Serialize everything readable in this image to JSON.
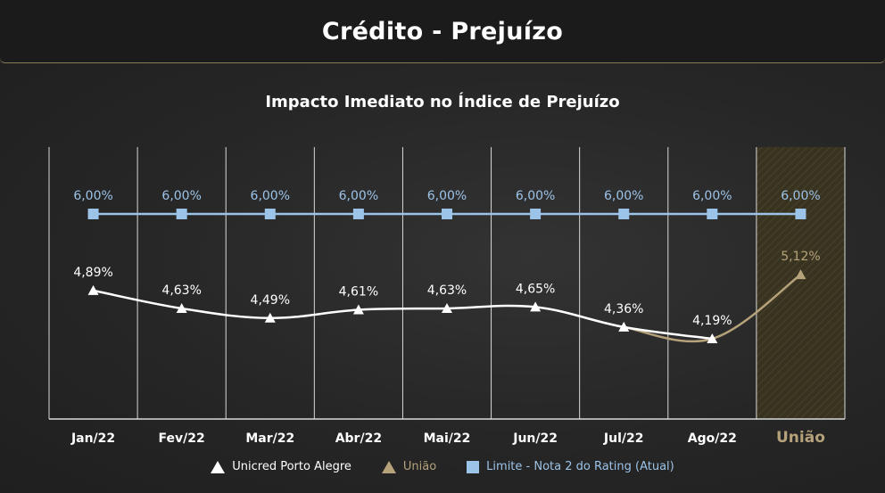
{
  "header": {
    "title": "Crédito - Prejuízo"
  },
  "colors": {
    "unicred": "#ffffff",
    "uniao": "#b5a27a",
    "limite": "#9cc3e8",
    "grid": "#d9d9d9"
  },
  "chart_data": {
    "type": "line",
    "title": "Impacto Imediato no Índice de Prejuízo",
    "categories": [
      "Jan/22",
      "Fev/22",
      "Mar/22",
      "Abr/22",
      "Mai/22",
      "Jun/22",
      "Jul/22",
      "Ago/22",
      "União"
    ],
    "highlight_category": "União",
    "grid": true,
    "legend_position": "bottom",
    "series": [
      {
        "name": "Unicred Porto Alegre",
        "marker": "triangle",
        "values": [
          4.89,
          4.63,
          4.49,
          4.61,
          4.63,
          4.65,
          4.36,
          4.19,
          null
        ],
        "labels": [
          "4,89%",
          "4,63%",
          "4,49%",
          "4,61%",
          "4,63%",
          "4,65%",
          "4,36%",
          "4,19%",
          ""
        ]
      },
      {
        "name": "União",
        "marker": "triangle",
        "values": [
          null,
          null,
          null,
          null,
          null,
          null,
          4.36,
          4.19,
          5.12
        ],
        "labels": [
          "",
          "",
          "",
          "",
          "",
          "",
          "",
          "",
          "5,12%"
        ]
      },
      {
        "name": "Limite - Nota 2 do Rating (Atual)",
        "marker": "square",
        "values": [
          6.0,
          6.0,
          6.0,
          6.0,
          6.0,
          6.0,
          6.0,
          6.0,
          6.0
        ],
        "labels": [
          "6,00%",
          "6,00%",
          "6,00%",
          "6,00%",
          "6,00%",
          "6,00%",
          "6,00%",
          "6,00%",
          "6,00%"
        ]
      }
    ]
  }
}
